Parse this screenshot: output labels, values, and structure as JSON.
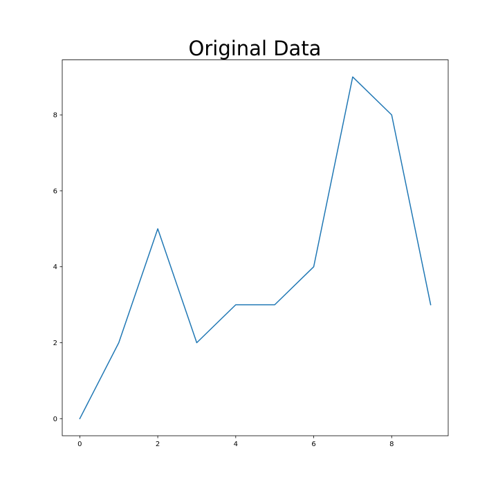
{
  "chart_data": {
    "type": "line",
    "title": "Original Data",
    "xlabel": "",
    "ylabel": "",
    "x": [
      0,
      1,
      2,
      3,
      4,
      5,
      6,
      7,
      8,
      9
    ],
    "series": [
      {
        "values": [
          0,
          2,
          5,
          2,
          3,
          3,
          4,
          9,
          8,
          3
        ],
        "color": "#1f77b4"
      }
    ],
    "xlim": [
      -0.45,
      9.45
    ],
    "ylim": [
      -0.45,
      9.45
    ],
    "xticks": [
      0,
      2,
      4,
      6,
      8
    ],
    "yticks": [
      0,
      2,
      4,
      6,
      8
    ],
    "grid": false,
    "legend": false
  }
}
